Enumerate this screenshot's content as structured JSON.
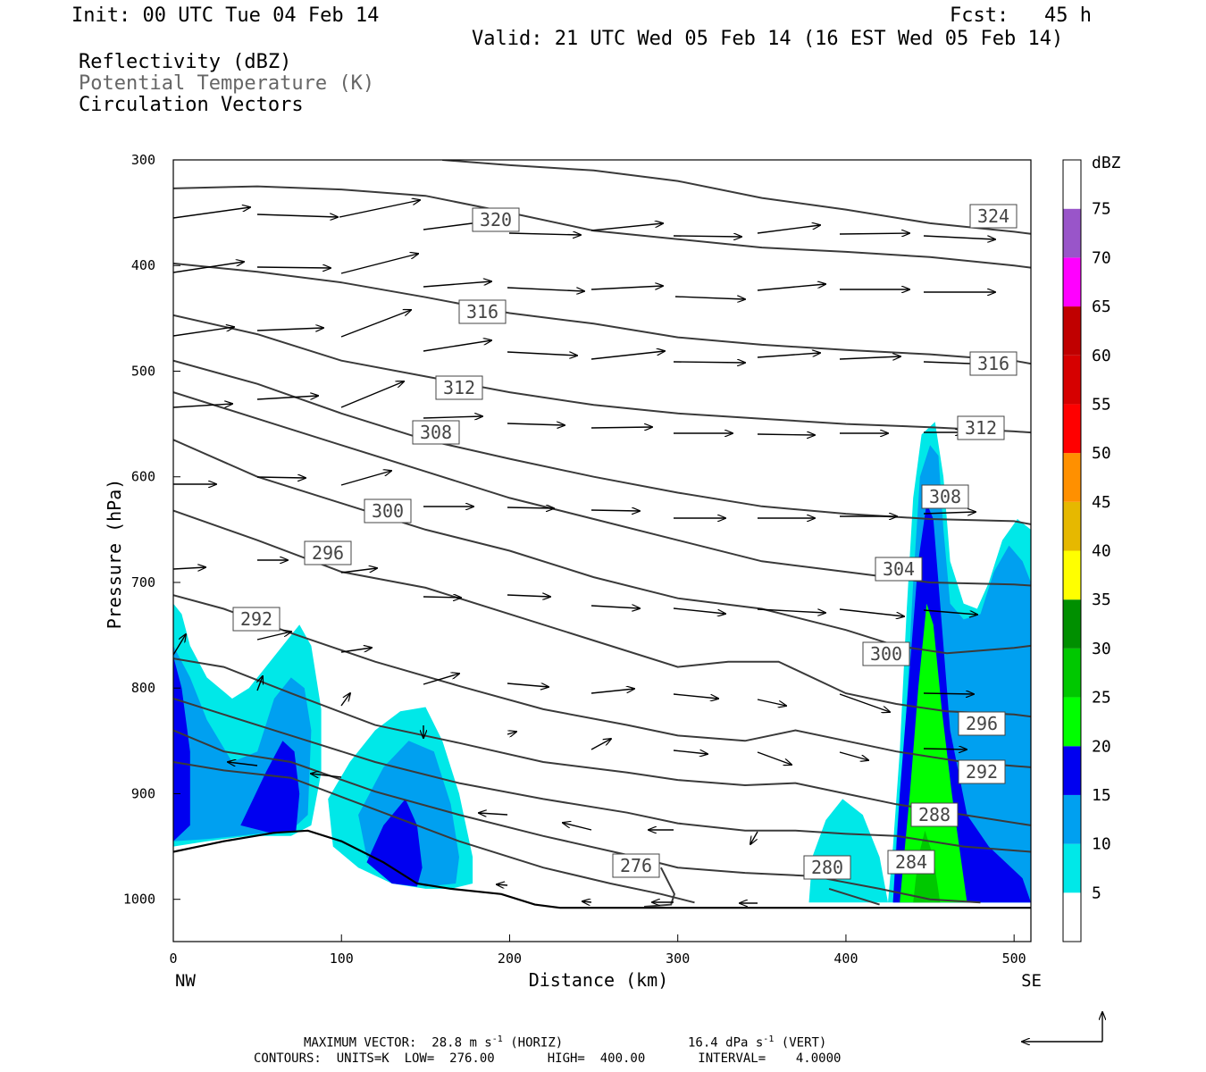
{
  "header": {
    "init": "Init: 00 UTC Tue 04 Feb 14",
    "fcst": "Fcst:   45 h",
    "valid": "Valid: 21 UTC Wed 05 Feb 14 (16 EST Wed 05 Feb 14)",
    "fields": [
      "Reflectivity (dBZ)",
      "Potential Temperature (K)",
      "Circulation Vectors"
    ]
  },
  "chart_data": {
    "type": "heatmap",
    "title": "",
    "xlabel": "Distance (km)",
    "ylabel": "Pressure (hPa)",
    "xlim": [
      0,
      510
    ],
    "ylim": [
      1040,
      300
    ],
    "x_ticks": [
      0,
      100,
      200,
      300,
      400,
      500
    ],
    "y_ticks": [
      300,
      400,
      500,
      600,
      700,
      800,
      900,
      1000
    ],
    "x_end_labels": {
      "left": "NW",
      "right": "SE"
    },
    "colorbar": {
      "units": "dBZ",
      "levels": [
        5,
        10,
        15,
        20,
        25,
        30,
        35,
        40,
        45,
        50,
        55,
        60,
        65,
        70,
        75
      ],
      "colors": [
        "#ffffff",
        "#00e8e8",
        "#00a0f0",
        "#0000f0",
        "#00ff00",
        "#00c800",
        "#008f00",
        "#ffff00",
        "#e6b800",
        "#ff9000",
        "#ff0000",
        "#d60000",
        "#c00000",
        "#ff00ff",
        "#9955c9",
        "#ffffff"
      ]
    },
    "reflectivity_regions": [
      {
        "dbz": 5,
        "polygon": [
          [
            0,
            720
          ],
          [
            5,
            730
          ],
          [
            10,
            760
          ],
          [
            20,
            790
          ],
          [
            35,
            810
          ],
          [
            45,
            800
          ],
          [
            55,
            780
          ],
          [
            65,
            760
          ],
          [
            75,
            740
          ],
          [
            82,
            760
          ],
          [
            88,
            820
          ],
          [
            88,
            880
          ],
          [
            82,
            930
          ],
          [
            70,
            940
          ],
          [
            45,
            940
          ],
          [
            20,
            945
          ],
          [
            0,
            950
          ]
        ]
      },
      {
        "dbz": 5,
        "polygon": [
          [
            92,
            905
          ],
          [
            105,
            870
          ],
          [
            120,
            840
          ],
          [
            135,
            822
          ],
          [
            150,
            818
          ],
          [
            160,
            850
          ],
          [
            170,
            900
          ],
          [
            178,
            960
          ],
          [
            178,
            985
          ],
          [
            165,
            990
          ],
          [
            150,
            990
          ],
          [
            130,
            985
          ],
          [
            110,
            970
          ],
          [
            95,
            950
          ]
        ]
      },
      {
        "dbz": 5,
        "polygon": [
          [
            378,
            1003
          ],
          [
            380,
            960
          ],
          [
            388,
            925
          ],
          [
            398,
            905
          ],
          [
            410,
            920
          ],
          [
            420,
            960
          ],
          [
            425,
            1003
          ]
        ]
      },
      {
        "dbz": 5,
        "polygon": [
          [
            425,
            1003
          ],
          [
            428,
            950
          ],
          [
            432,
            860
          ],
          [
            436,
            730
          ],
          [
            440,
            620
          ],
          [
            445,
            560
          ],
          [
            453,
            548
          ],
          [
            458,
            600
          ],
          [
            462,
            680
          ],
          [
            470,
            720
          ],
          [
            478,
            725
          ],
          [
            485,
            700
          ],
          [
            493,
            660
          ],
          [
            502,
            640
          ],
          [
            510,
            650
          ],
          [
            510,
            1003
          ]
        ]
      },
      {
        "dbz": 10,
        "polygon": [
          [
            0,
            760
          ],
          [
            10,
            790
          ],
          [
            20,
            830
          ],
          [
            35,
            870
          ],
          [
            50,
            860
          ],
          [
            60,
            810
          ],
          [
            70,
            790
          ],
          [
            78,
            800
          ],
          [
            82,
            840
          ],
          [
            80,
            920
          ],
          [
            70,
            935
          ],
          [
            50,
            938
          ],
          [
            20,
            943
          ],
          [
            0,
            945
          ]
        ]
      },
      {
        "dbz": 10,
        "polygon": [
          [
            110,
            920
          ],
          [
            125,
            875
          ],
          [
            140,
            850
          ],
          [
            155,
            860
          ],
          [
            165,
            910
          ],
          [
            170,
            960
          ],
          [
            168,
            985
          ],
          [
            150,
            988
          ],
          [
            130,
            980
          ],
          [
            115,
            960
          ]
        ]
      },
      {
        "dbz": 10,
        "polygon": [
          [
            428,
            1003
          ],
          [
            430,
            940
          ],
          [
            435,
            850
          ],
          [
            440,
            700
          ],
          [
            444,
            600
          ],
          [
            450,
            570
          ],
          [
            455,
            580
          ],
          [
            458,
            650
          ],
          [
            462,
            720
          ],
          [
            470,
            735
          ],
          [
            480,
            730
          ],
          [
            488,
            690
          ],
          [
            497,
            665
          ],
          [
            505,
            680
          ],
          [
            510,
            700
          ],
          [
            510,
            1003
          ]
        ]
      },
      {
        "dbz": 15,
        "polygon": [
          [
            0,
            770
          ],
          [
            5,
            800
          ],
          [
            10,
            860
          ],
          [
            10,
            930
          ],
          [
            0,
            945
          ]
        ]
      },
      {
        "dbz": 15,
        "polygon": [
          [
            40,
            930
          ],
          [
            55,
            880
          ],
          [
            65,
            850
          ],
          [
            72,
            860
          ],
          [
            75,
            900
          ],
          [
            73,
            935
          ],
          [
            60,
            938
          ]
        ]
      },
      {
        "dbz": 15,
        "polygon": [
          [
            115,
            965
          ],
          [
            125,
            930
          ],
          [
            138,
            905
          ],
          [
            145,
            930
          ],
          [
            148,
            970
          ],
          [
            145,
            988
          ],
          [
            130,
            985
          ]
        ]
      },
      {
        "dbz": 15,
        "polygon": [
          [
            428,
            1003
          ],
          [
            432,
            900
          ],
          [
            438,
            780
          ],
          [
            443,
            680
          ],
          [
            448,
            625
          ],
          [
            452,
            640
          ],
          [
            456,
            720
          ],
          [
            462,
            840
          ],
          [
            472,
            920
          ],
          [
            485,
            950
          ],
          [
            505,
            980
          ],
          [
            510,
            1003
          ]
        ]
      },
      {
        "dbz": 20,
        "polygon": [
          [
            432,
            1003
          ],
          [
            438,
            900
          ],
          [
            443,
            800
          ],
          [
            448,
            720
          ],
          [
            452,
            740
          ],
          [
            457,
            820
          ],
          [
            463,
            900
          ],
          [
            472,
            1003
          ]
        ]
      },
      {
        "dbz": 25,
        "polygon": [
          [
            440,
            1003
          ],
          [
            443,
            960
          ],
          [
            447,
            935
          ],
          [
            452,
            960
          ],
          [
            456,
            1003
          ]
        ]
      }
    ],
    "theta_contours_K": [
      276,
      280,
      284,
      288,
      292,
      296,
      300,
      304,
      308,
      312,
      316,
      320,
      324
    ],
    "theta_labels": [
      {
        "value": 320,
        "label": "320"
      },
      {
        "value": 324,
        "label": "324"
      },
      {
        "value": 316,
        "label": "316"
      },
      {
        "value": 316,
        "label": "316"
      },
      {
        "value": 312,
        "label": "312"
      },
      {
        "value": 312,
        "label": "312"
      },
      {
        "value": 308,
        "label": "308"
      },
      {
        "value": 308,
        "label": "308"
      },
      {
        "value": 300,
        "label": "300"
      },
      {
        "value": 296,
        "label": "296"
      },
      {
        "value": 304,
        "label": "304"
      },
      {
        "value": 292,
        "label": "292"
      },
      {
        "value": 300,
        "label": "300"
      },
      {
        "value": 296,
        "label": "296"
      },
      {
        "value": 292,
        "label": "292"
      },
      {
        "value": 288,
        "label": "288"
      },
      {
        "value": 284,
        "label": "284"
      },
      {
        "value": 280,
        "label": "280"
      },
      {
        "value": 276,
        "label": "276"
      }
    ],
    "terrain_surface": [
      [
        0,
        955
      ],
      [
        30,
        945
      ],
      [
        60,
        937
      ],
      [
        80,
        935
      ],
      [
        100,
        945
      ],
      [
        125,
        965
      ],
      [
        145,
        985
      ],
      [
        165,
        990
      ],
      [
        195,
        995
      ],
      [
        215,
        1005
      ],
      [
        230,
        1008
      ],
      [
        300,
        1008
      ],
      [
        400,
        1008
      ],
      [
        510,
        1008
      ]
    ]
  },
  "footer": {
    "max_vector_label": "MAXIMUM VECTOR:",
    "horiz_value": "28.8 m s",
    "horiz_exp": "-1",
    "horiz_tag": "(HORIZ)",
    "vert_value": "16.4 dPa s",
    "vert_exp": "-1",
    "vert_tag": "(VERT)",
    "contours": "CONTOURS:  UNITS=K  LOW=  276.00       HIGH=  400.00       INTERVAL=    4.0000"
  }
}
